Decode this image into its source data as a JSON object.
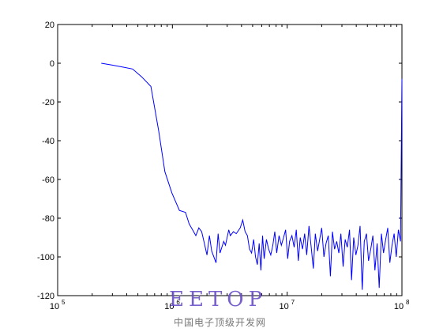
{
  "chart_data": {
    "type": "line",
    "title": "",
    "xlabel": "",
    "ylabel": "",
    "x_scale": "log",
    "xlim": [
      100000,
      100000000
    ],
    "ylim": [
      -120,
      20
    ],
    "grid": false,
    "x_ticks": [
      {
        "base": "10",
        "exp": "5",
        "value": 100000
      },
      {
        "base": "10",
        "exp": "6",
        "value": 1000000
      },
      {
        "base": "10",
        "exp": "7",
        "value": 10000000
      },
      {
        "base": "10",
        "exp": "8",
        "value": 100000000
      }
    ],
    "y_ticks": [
      "20",
      "0",
      "-20",
      "-40",
      "-60",
      "-80",
      "-100",
      "-120"
    ],
    "series": [
      {
        "color": "#0000ff",
        "x": [
          240000,
          300000,
          370000,
          450000,
          540000,
          650000,
          760000,
          860000,
          990000,
          1150000,
          1300000,
          1400000,
          1500000,
          1600000,
          1700000,
          1800000,
          1900000,
          2000000,
          2100000,
          2200000,
          2400000,
          2500000,
          2600000,
          2800000,
          2900000,
          3100000,
          3200000,
          3400000,
          3600000,
          3900000,
          4100000,
          4300000,
          4500000,
          4700000,
          4900000,
          5100000,
          5300000,
          5500000,
          5700000,
          5900000,
          6100000,
          6300000,
          6600000,
          6900000,
          7200000,
          7500000,
          7800000,
          8100000,
          8500000,
          8900000,
          9300000,
          9700000,
          10100000,
          10500000,
          11000000,
          11500000,
          12000000,
          12500000,
          13000000,
          13600000,
          14200000,
          14800000,
          15500000,
          16200000,
          16900000,
          17600000,
          18400000,
          19200000,
          20000000,
          20900000,
          21800000,
          22800000,
          23800000,
          24800000,
          25900000,
          27000000,
          28200000,
          29400000,
          30700000,
          32000000,
          33400000,
          34900000,
          36400000,
          38000000,
          39700000,
          41400000,
          43200000,
          45100000,
          47000000,
          49100000,
          51200000,
          53500000,
          55800000,
          58200000,
          60800000,
          63400000,
          66200000,
          69100000,
          72100000,
          75200000,
          78500000,
          81900000,
          85500000,
          89200000,
          93100000,
          97200000,
          100000000
        ],
        "y": [
          0,
          -1,
          -2,
          -3,
          -7,
          -12,
          -35,
          -56,
          -67,
          -76,
          -77,
          -83,
          -86,
          -89,
          -85,
          -87,
          -93,
          -99,
          -89,
          -97,
          -103,
          -88,
          -98,
          -92,
          -94,
          -86,
          -89,
          -87,
          -88,
          -85,
          -81,
          -87,
          -89,
          -96,
          -98,
          -91,
          -100,
          -104,
          -93,
          -107,
          -89,
          -101,
          -91,
          -96,
          -99,
          -94,
          -87,
          -98,
          -89,
          -94,
          -90,
          -86,
          -101,
          -92,
          -89,
          -95,
          -86,
          -102,
          -90,
          -96,
          -88,
          -99,
          -84,
          -95,
          -106,
          -88,
          -97,
          -91,
          -85,
          -100,
          -93,
          -89,
          -110,
          -87,
          -96,
          -92,
          -98,
          -88,
          -105,
          -91,
          -95,
          -86,
          -112,
          -90,
          -99,
          -94,
          -84,
          -117,
          -92,
          -88,
          -102,
          -96,
          -89,
          -107,
          -93,
          -116,
          -88,
          -98,
          -91,
          -85,
          -103,
          -94,
          -88,
          -100,
          -86,
          -92,
          -8
        ]
      }
    ]
  },
  "watermark": {
    "main": "EETOP",
    "sub": "中国电子顶级开发网"
  }
}
